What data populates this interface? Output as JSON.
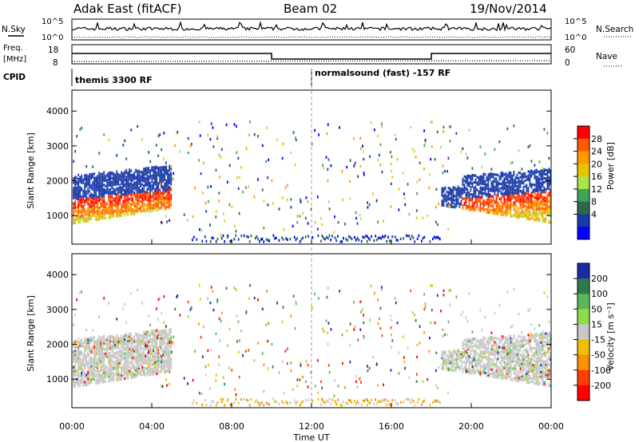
{
  "header": {
    "radar": "Adak East (fitACF)",
    "beam": "Beam 02",
    "date": "19/Nov/2014"
  },
  "noise_panel": {
    "left_label": "N.Sky",
    "right_label": "N.Search",
    "left_ticks": [
      "10^5",
      "10^0"
    ],
    "right_ticks": [
      "10^5",
      "10^0"
    ]
  },
  "freq_panel": {
    "left_label": "Freq.",
    "left_unit": "[MHz]",
    "right_label": "Nave",
    "left_ticks": [
      "18",
      "8"
    ],
    "right_ticks": [
      "60",
      "0"
    ]
  },
  "cpid_panel": {
    "label": "CPID",
    "programs": [
      {
        "name": "themis 3300 RF",
        "start_hour": 0
      },
      {
        "name": "normalsound (fast) -157 RF",
        "start_hour": 12
      }
    ]
  },
  "chart_data": [
    {
      "type": "heatmap",
      "name": "power",
      "ylabel": "Slant Range [km]",
      "yticks": [
        "4000",
        "3000",
        "2000",
        "1000"
      ],
      "ylim": [
        180,
        4600
      ],
      "xlim": [
        0,
        24
      ],
      "colorbar_label": "Power [dB]",
      "colorbar_ticks": [
        "28",
        "24",
        "20",
        "16",
        "12",
        "8",
        "4"
      ],
      "colorbar_colors": [
        "#ff0000",
        "#ff5a00",
        "#ff9a00",
        "#e8c400",
        "#aee34a",
        "#3fa35a",
        "#2e6a4a",
        "#1a3aa8",
        "#0000ff"
      ]
    },
    {
      "type": "heatmap",
      "name": "velocity",
      "ylabel": "Slant Range [km]",
      "yticks": [
        "4000",
        "3000",
        "2000",
        "1000"
      ],
      "ylim": [
        180,
        4600
      ],
      "xlim": [
        0,
        24
      ],
      "colorbar_label": "Velocity [m s⁻¹]",
      "colorbar_ticks": [
        "200",
        "100",
        "50",
        "15",
        "-15",
        "-50",
        "-100",
        "-200"
      ],
      "colorbar_colors": [
        "#1a2aa8",
        "#2e7a4a",
        "#5ab85a",
        "#8edc4a",
        "#c8c8c8",
        "#f0c000",
        "#ff9000",
        "#ff4000",
        "#ff0000"
      ]
    }
  ],
  "xaxis": {
    "ticks": [
      "00:00",
      "04:00",
      "08:00",
      "12:00",
      "16:00",
      "20:00",
      "00:00"
    ],
    "label": "Time UT"
  }
}
